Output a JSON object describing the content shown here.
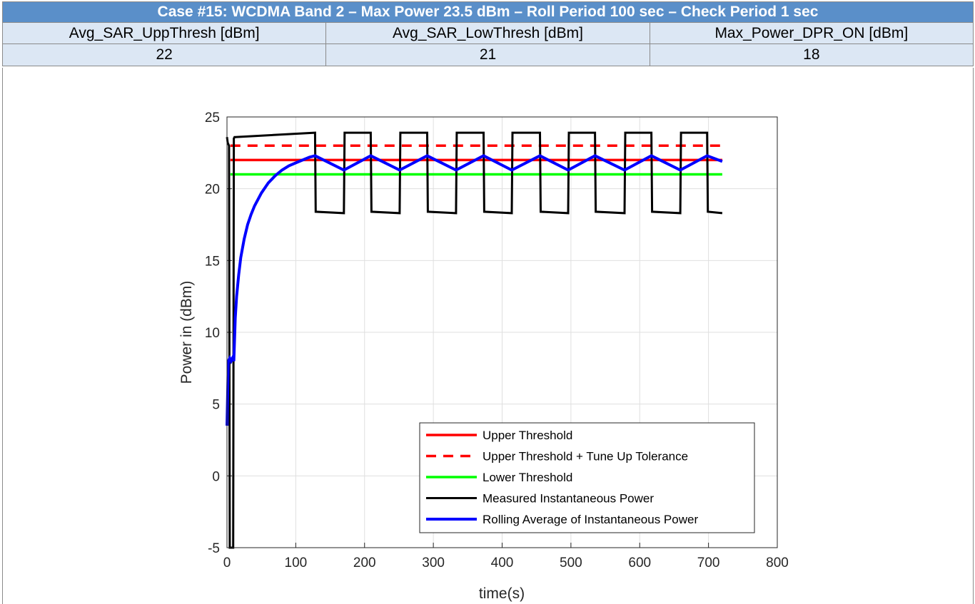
{
  "table": {
    "title": "Case #15: WCDMA Band 2 – Max Power 23.5 dBm – Roll Period 100 sec – Check Period 1 sec",
    "headers": [
      "Avg_SAR_UppThresh [dBm]",
      "Avg_SAR_LowThresh [dBm]",
      "Max_Power_DPR_ON [dBm]"
    ],
    "values": [
      "22",
      "21",
      "18"
    ]
  },
  "chart_data": {
    "type": "line",
    "xlabel": "time(s)",
    "ylabel": "Power in (dBm)",
    "xlim": [
      0,
      800
    ],
    "ylim": [
      -5,
      25
    ],
    "xticks": [
      0,
      100,
      200,
      300,
      400,
      500,
      600,
      700,
      800
    ],
    "yticks": [
      -5,
      0,
      5,
      10,
      15,
      20,
      25
    ],
    "grid": true,
    "legend_position": "bottom-right",
    "series": [
      {
        "name": "Upper Threshold",
        "color": "#ff0000",
        "style": "solid",
        "x": [
          5,
          720
        ],
        "y": [
          22,
          22
        ]
      },
      {
        "name": "Upper Threshold + Tune Up Tolerance",
        "color": "#ff0000",
        "style": "dashed",
        "x": [
          5,
          720
        ],
        "y": [
          23,
          23
        ]
      },
      {
        "name": "Lower Threshold",
        "color": "#00ff00",
        "style": "solid",
        "x": [
          5,
          720
        ],
        "y": [
          21,
          21
        ]
      },
      {
        "name": "Measured Instantaneous Power",
        "color": "#000000",
        "style": "solid",
        "x": [
          0,
          1,
          3,
          4,
          9,
          10,
          11,
          12,
          128,
          129,
          170,
          171,
          209,
          210,
          251,
          252,
          291,
          292,
          333,
          334,
          373,
          374,
          414,
          415,
          455,
          456,
          496,
          497,
          535,
          536,
          578,
          579,
          617,
          618,
          659,
          660,
          698,
          699,
          720
        ],
        "y": [
          23.6,
          23.2,
          23.0,
          -5.0,
          -5.0,
          23.5,
          23.6,
          23.6,
          23.9,
          18.4,
          18.3,
          23.9,
          23.9,
          18.4,
          18.3,
          23.9,
          23.9,
          18.4,
          18.3,
          23.9,
          23.9,
          18.4,
          18.3,
          23.9,
          23.9,
          18.4,
          18.3,
          23.9,
          23.9,
          18.4,
          18.3,
          23.9,
          23.9,
          18.4,
          18.3,
          23.9,
          23.9,
          18.4,
          18.3
        ]
      },
      {
        "name": "Rolling Average of Instantaneous Power",
        "color": "#0000ff",
        "style": "solid",
        "x": [
          0,
          2,
          4,
          6,
          8,
          10,
          11,
          12,
          14,
          17,
          20,
          25,
          30,
          35,
          40,
          50,
          60,
          70,
          80,
          90,
          100,
          110,
          120,
          128,
          170,
          209,
          251,
          291,
          333,
          373,
          414,
          455,
          496,
          535,
          578,
          617,
          659,
          698,
          720
        ],
        "y": [
          3.5,
          8.0,
          8.2,
          8.0,
          8.2,
          8.0,
          9.5,
          11.0,
          12.5,
          14.0,
          15.2,
          16.5,
          17.5,
          18.2,
          18.8,
          19.7,
          20.4,
          20.9,
          21.3,
          21.6,
          21.8,
          22.0,
          22.2,
          22.3,
          21.3,
          22.3,
          21.3,
          22.3,
          21.3,
          22.3,
          21.3,
          22.3,
          21.3,
          22.3,
          21.3,
          22.3,
          21.3,
          22.3,
          21.9
        ]
      }
    ]
  }
}
